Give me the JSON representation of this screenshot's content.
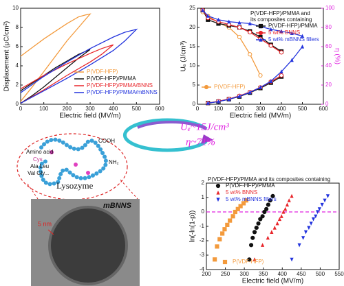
{
  "chart_data": [
    {
      "type": "line",
      "xlabel": "Electric field (MV/m)",
      "ylabel": "Displacement (μC/cm²)",
      "xlim": [
        0,
        600
      ],
      "xticks": [
        0,
        100,
        200,
        300,
        400,
        500,
        600
      ],
      "ylim": [
        0,
        10
      ],
      "yticks": [
        0,
        2,
        4,
        6,
        8,
        10
      ],
      "legend": "lower right",
      "series": [
        {
          "name": "P(VDF-HFP)",
          "color": "#f39a3c",
          "x": [
            0,
            50,
            100,
            150,
            200,
            250,
            300,
            280,
            250,
            200,
            150,
            100,
            50,
            0
          ],
          "values": [
            0.3,
            1.8,
            3.4,
            5.0,
            6.6,
            8.0,
            9.4,
            9.3,
            9.1,
            8.4,
            7.6,
            6.8,
            5.9,
            5.0
          ]
        },
        {
          "name": "P(VDF-HFP)/PMMA",
          "color": "#111111",
          "x": [
            0,
            50,
            100,
            150,
            200,
            250,
            300,
            250,
            200,
            150,
            100,
            50,
            0
          ],
          "values": [
            0.1,
            0.9,
            1.8,
            2.8,
            3.8,
            4.8,
            5.7,
            5.2,
            4.5,
            3.8,
            3.0,
            2.2,
            1.4
          ]
        },
        {
          "name": "P(VDF-HFP)/PMMA/BNNS",
          "color": "#e8262b",
          "x": [
            0,
            100,
            200,
            300,
            350,
            400,
            350,
            300,
            200,
            100,
            0
          ],
          "values": [
            0.1,
            1.5,
            3.0,
            4.4,
            5.2,
            6.2,
            5.8,
            5.3,
            4.2,
            3.0,
            1.6
          ]
        },
        {
          "name": "P(VDF-HFP)/PMMA/mBNNS",
          "color": "#2233dd",
          "x": [
            0,
            100,
            200,
            300,
            400,
            450,
            500,
            450,
            400,
            300,
            200,
            100,
            0
          ],
          "values": [
            0.1,
            1.4,
            2.7,
            4.1,
            5.6,
            6.6,
            7.8,
            7.5,
            7.0,
            5.8,
            4.4,
            2.9,
            1.2
          ]
        }
      ]
    },
    {
      "type": "line",
      "xlabel": "Electric field (MV/m)",
      "ylabel": "Uₑ (J/cm³)",
      "y2label": "η (%)",
      "xlim": [
        0,
        600
      ],
      "xticks": [
        0,
        100,
        200,
        300,
        400,
        500,
        600
      ],
      "ylim": [
        0,
        25
      ],
      "yticks": [
        0,
        5,
        10,
        15,
        20,
        25
      ],
      "y2lim": [
        0,
        100
      ],
      "y2ticks": [
        0,
        20,
        40,
        60,
        80,
        100
      ],
      "legend": "upper right",
      "legend_title": [
        "P(VDF-HFP)/PMMA and",
        "its composites containing"
      ],
      "series": [
        {
          "name": "P(VDF-HFP)/PMMA",
          "color": "#111111",
          "marker": "square",
          "x": [
            50,
            100,
            150,
            200,
            250,
            300,
            350,
            400
          ],
          "values": [
            0.3,
            0.7,
            1.3,
            2.0,
            3.0,
            4.2,
            5.6,
            7.2
          ]
        },
        {
          "name": "5 wt% BNNS",
          "color": "#e8262b",
          "marker": "circle",
          "x": [
            50,
            100,
            150,
            200,
            250,
            300,
            350,
            400
          ],
          "values": [
            0.3,
            0.8,
            1.4,
            2.2,
            3.2,
            4.4,
            5.9,
            7.5
          ]
        },
        {
          "name": "5 wt% mBNNS fillers",
          "color": "#2233dd",
          "marker": "triangle",
          "x": [
            50,
            100,
            150,
            200,
            250,
            300,
            350,
            400,
            450,
            500
          ],
          "values": [
            0.3,
            0.7,
            1.3,
            2.1,
            3.1,
            4.4,
            6.0,
            8.5,
            11.5,
            15.0
          ]
        },
        {
          "name": "P(VDF-HFP)",
          "color": "#f39a3c",
          "marker": "circle",
          "axis": "y2",
          "x": [
            25,
            50,
            100,
            150,
            200,
            250,
            300
          ],
          "values": [
            96,
            92,
            85,
            80,
            70,
            52,
            30
          ]
        },
        {
          "color": "#111111",
          "marker": "square",
          "axis": "y2",
          "x": [
            25,
            50,
            100,
            150,
            200,
            250,
            300,
            350,
            400
          ],
          "values": [
            98,
            88,
            84,
            82,
            80,
            76,
            70,
            62,
            55
          ]
        },
        {
          "color": "#e8262b",
          "marker": "circle",
          "axis": "y2",
          "x": [
            25,
            50,
            100,
            150,
            200,
            250,
            300,
            350,
            400
          ],
          "values": [
            98,
            90,
            86,
            83,
            80,
            75,
            68,
            61,
            54
          ]
        },
        {
          "color": "#2233dd",
          "marker": "triangle",
          "axis": "y2",
          "x": [
            25,
            50,
            100,
            150,
            200,
            250,
            300,
            350,
            400,
            450,
            500
          ],
          "values": [
            98,
            92,
            88,
            86,
            85,
            84,
            81,
            78,
            76,
            74,
            71
          ]
        }
      ]
    },
    {
      "type": "scatter",
      "xlabel": "Electric field (MV/m)",
      "ylabel": "ln(-ln(1-p))",
      "xlim": [
        200,
        550
      ],
      "xticks": [
        200,
        250,
        300,
        350,
        400,
        450,
        500,
        550
      ],
      "ylim": [
        -4,
        2
      ],
      "yticks": [
        -4,
        -3,
        -2,
        -1,
        0,
        1,
        2
      ],
      "hline": 0,
      "hline_color": "#e020e0",
      "legend": "upper left",
      "legend_title": [
        "P(VDF-HFP)/PMMA and  its composites containing"
      ],
      "series": [
        {
          "name": "P(VDF-HFP)/PMMA",
          "color": "#111111",
          "marker": "circle",
          "x": [
            313,
            318,
            322,
            327,
            332,
            337,
            342,
            348,
            353,
            358,
            363,
            368,
            375
          ],
          "values": [
            -3.3,
            -2.3,
            -1.8,
            -1.4,
            -1.1,
            -0.8,
            -0.5,
            -0.3,
            0,
            0.2,
            0.5,
            0.8,
            1.1
          ]
        },
        {
          "name": "5 wt% BNNS",
          "color": "#e8262b",
          "marker": "triangle",
          "x": [
            327,
            348,
            362,
            372,
            380,
            387,
            393,
            398,
            403,
            408,
            413,
            418,
            425
          ],
          "values": [
            -3.3,
            -2.3,
            -1.8,
            -1.4,
            -1.1,
            -0.8,
            -0.5,
            -0.3,
            0,
            0.2,
            0.5,
            0.8,
            1.1
          ]
        },
        {
          "name": "5 wt% mBNNS fillers",
          "color": "#2233dd",
          "marker": "triangle-down",
          "x": [
            425,
            445,
            455,
            462,
            470,
            476,
            482,
            488,
            493,
            498,
            505,
            512,
            520
          ],
          "values": [
            -3.3,
            -2.3,
            -1.8,
            -1.4,
            -1.1,
            -0.8,
            -0.5,
            -0.3,
            0,
            0.2,
            0.5,
            0.8,
            1.1
          ]
        },
        {
          "name": "P(VDF-HFP)",
          "color": "#f39a3c",
          "marker": "square",
          "x": [
            222,
            228,
            235,
            242,
            248,
            255,
            262,
            270,
            276,
            283,
            290,
            298,
            305
          ],
          "values": [
            -3.3,
            -2.4,
            -1.9,
            -1.5,
            -1.2,
            -0.9,
            -0.6,
            -0.3,
            0,
            0.2,
            0.4,
            0.6,
            0.8
          ]
        }
      ]
    }
  ],
  "highlights": [
    "Uₑ~15J/cm³",
    "η~71%"
  ],
  "illustration": {
    "amino_acid": "Amino acid",
    "cys": "Cys",
    "ala_leu": "Ala  Leu",
    "val_gly": "Val  Gly...",
    "cooh": "COOH",
    "nh2": "NH₂",
    "protein": "Lysozyme",
    "particle": "mBNNS",
    "scale": "5 nm"
  }
}
